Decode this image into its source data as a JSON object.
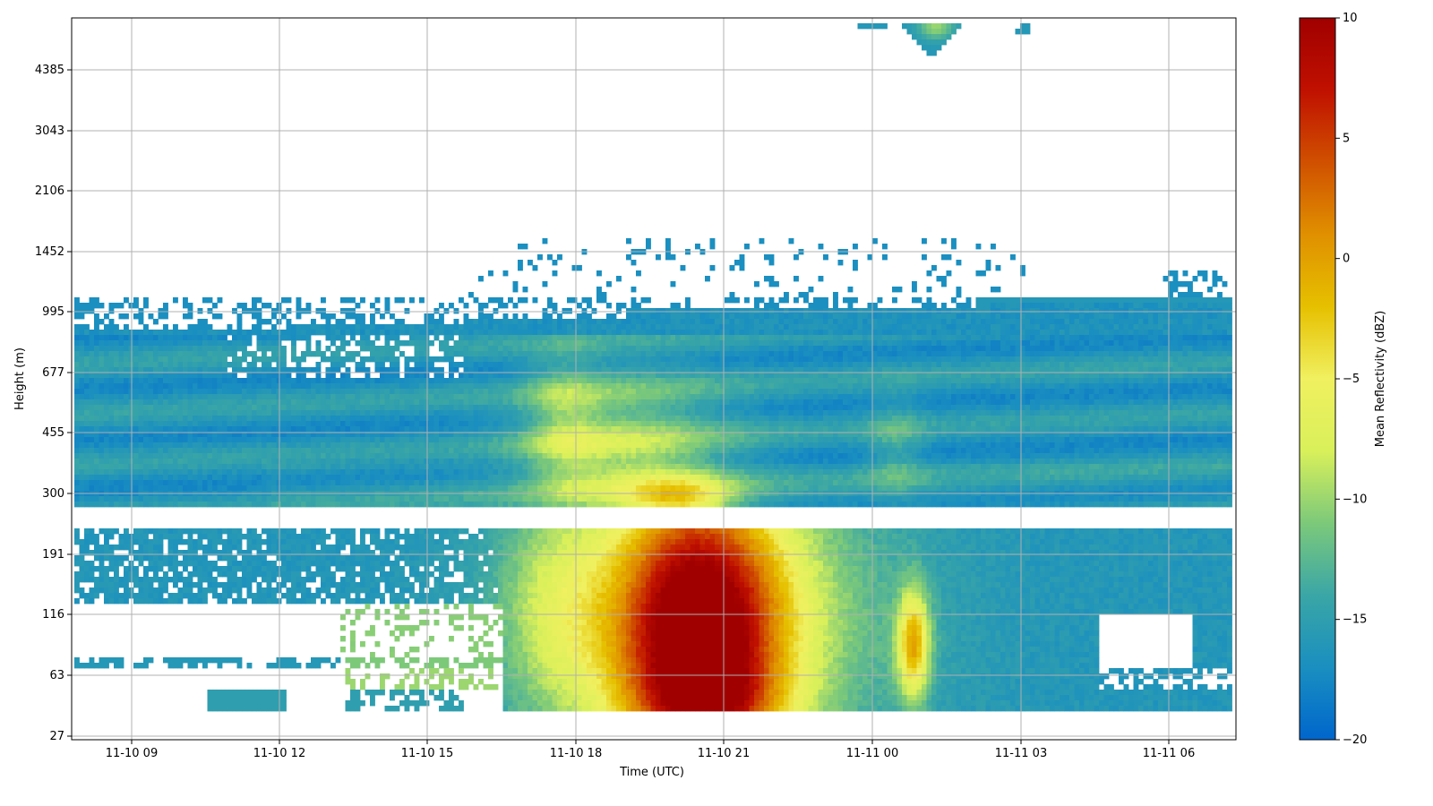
{
  "chart_data": {
    "type": "heatmap",
    "title": "",
    "xlabel": "Time (UTC)",
    "ylabel": "Height (m)",
    "x_ticks": [
      "11-10 09",
      "11-10 12",
      "11-10 15",
      "11-10 18",
      "11-10 21",
      "11-11 00",
      "11-11 03",
      "11-11 06"
    ],
    "y_ticks": [
      "27",
      "63",
      "116",
      "191",
      "300",
      "455",
      "677",
      "995",
      "1452",
      "2106",
      "3043",
      "4385"
    ],
    "x_range": [
      "2024-11-10 07:50",
      "2024-11-11 07:20"
    ],
    "colorbar": {
      "label": "Mean Reflectivity (dBZ)",
      "min": -20,
      "max": 10,
      "ticks": [
        "10",
        "5",
        "0",
        "−5",
        "−10",
        "−15",
        "−20"
      ],
      "colormap": [
        "#0066cc",
        "#1a8fc0",
        "#3aa6a6",
        "#7cc97a",
        "#d9f05a",
        "#f0f060",
        "#e6c000",
        "#e09000",
        "#d05000",
        "#c01000",
        "#a00000"
      ]
    },
    "grid": true,
    "features": [
      {
        "desc": "background low cloud",
        "height_m": [
          300,
          900
        ],
        "time": [
          "11-10 08",
          "11-11 07"
        ],
        "dbz": -16
      },
      {
        "desc": "cloud top patches",
        "height_m": [
          995,
          1452
        ],
        "time": [
          "11-10 17",
          "11-11 07"
        ],
        "dbz": -17
      },
      {
        "desc": "upper cloud",
        "height_m": [
          4400,
          5000
        ],
        "time": [
          "11-11 00",
          "11-11 02"
        ],
        "dbz": -11
      },
      {
        "desc": "main precipitation core",
        "height_m": [
          35,
          240
        ],
        "time": [
          "11-10 19",
          "11-10 22"
        ],
        "dbz": 8
      },
      {
        "desc": "precipitation shaft",
        "height_m": [
          300,
          600
        ],
        "time": [
          "11-10 18",
          "11-10 21"
        ],
        "dbz": -9
      },
      {
        "desc": "near-surface echo",
        "height_m": [
          35,
          240
        ],
        "time": [
          "11-10 16",
          "11-11 07"
        ],
        "dbz": -15
      }
    ],
    "data_gap_height_m": [
      240,
      280
    ]
  }
}
